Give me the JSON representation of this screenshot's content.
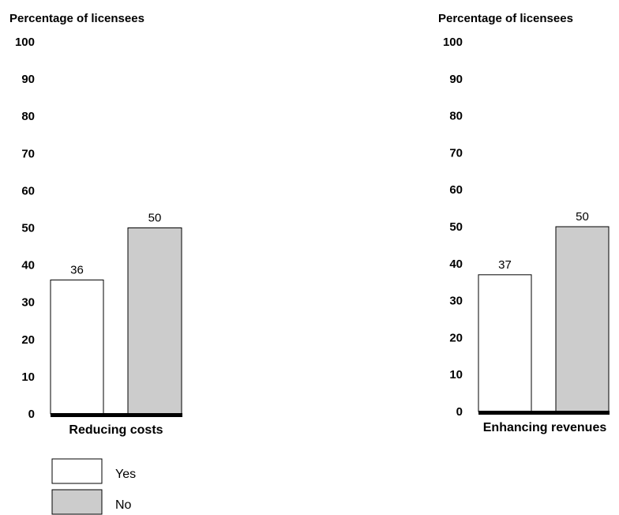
{
  "chart_data": [
    {
      "type": "bar",
      "ylabel": "Percentage of licensees",
      "ylim": [
        0,
        100
      ],
      "yticks": [
        "0",
        "10",
        "20",
        "30",
        "40",
        "50",
        "60",
        "70",
        "80",
        "90",
        "100"
      ],
      "category": "Reducing costs",
      "series": [
        {
          "name": "Yes",
          "values": [
            36
          ]
        },
        {
          "name": "No",
          "values": [
            50
          ]
        }
      ],
      "data_labels": [
        "36",
        "50"
      ]
    },
    {
      "type": "bar",
      "ylabel": "Percentage of licensees",
      "ylim": [
        0,
        100
      ],
      "yticks": [
        "0",
        "10",
        "20",
        "30",
        "40",
        "50",
        "60",
        "70",
        "80",
        "90",
        "100"
      ],
      "category": "Enhancing revenues",
      "series": [
        {
          "name": "Yes",
          "values": [
            37
          ]
        },
        {
          "name": "No",
          "values": [
            50
          ]
        }
      ],
      "data_labels": [
        "37",
        "50"
      ]
    }
  ],
  "legend": {
    "placement": "bottom-left",
    "items": [
      {
        "label": "Yes",
        "color": "#ffffff"
      },
      {
        "label": "No",
        "color": "#cccccc"
      }
    ]
  },
  "colors": {
    "yes": "#ffffff",
    "no": "#cccccc",
    "outline": "#000000"
  }
}
